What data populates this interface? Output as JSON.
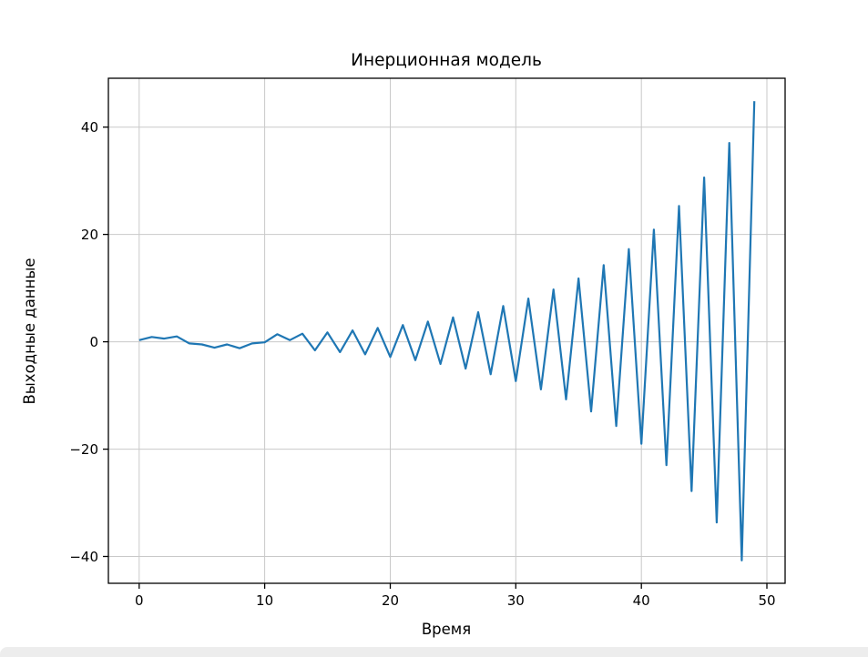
{
  "chart_data": {
    "type": "line",
    "title": "Инерционная модель",
    "xlabel": "Время",
    "ylabel": "Выходные данные",
    "x": [
      0,
      1,
      2,
      3,
      4,
      5,
      6,
      7,
      8,
      9,
      10,
      11,
      12,
      13,
      14,
      15,
      16,
      17,
      18,
      19,
      20,
      21,
      22,
      23,
      24,
      25,
      26,
      27,
      28,
      29,
      30,
      31,
      32,
      33,
      34,
      35,
      36,
      37,
      38,
      39,
      40,
      41,
      42,
      43,
      44,
      45,
      46,
      47,
      48,
      49
    ],
    "y": [
      0.3,
      0.9,
      0.6,
      1.0,
      -0.3,
      -0.5,
      -1.1,
      -0.5,
      -1.2,
      -0.3,
      -0.1,
      1.4,
      0.3,
      1.5,
      -1.59,
      1.75,
      -1.93,
      2.12,
      -2.34,
      2.57,
      -2.83,
      3.11,
      -3.42,
      3.76,
      -4.14,
      4.55,
      -5.01,
      5.51,
      -6.06,
      6.66,
      -7.33,
      8.06,
      -8.87,
      9.75,
      -10.73,
      11.8,
      -12.98,
      14.28,
      -15.71,
      17.28,
      -19.01,
      20.91,
      -23.0,
      25.3,
      -27.83,
      30.61,
      -33.68,
      37.04,
      -40.75,
      44.82
    ],
    "xticks": [
      0,
      10,
      20,
      30,
      40,
      50
    ],
    "yticks": [
      -40,
      -20,
      0,
      20,
      40
    ],
    "xlim": [
      -2.45,
      51.45
    ],
    "ylim": [
      -45.0,
      49.1
    ],
    "grid": true,
    "legend": false,
    "line_color": "#1f77b4",
    "grid_color": "#c9c9c9",
    "axes_color": "#000000",
    "background": "#ffffff"
  }
}
